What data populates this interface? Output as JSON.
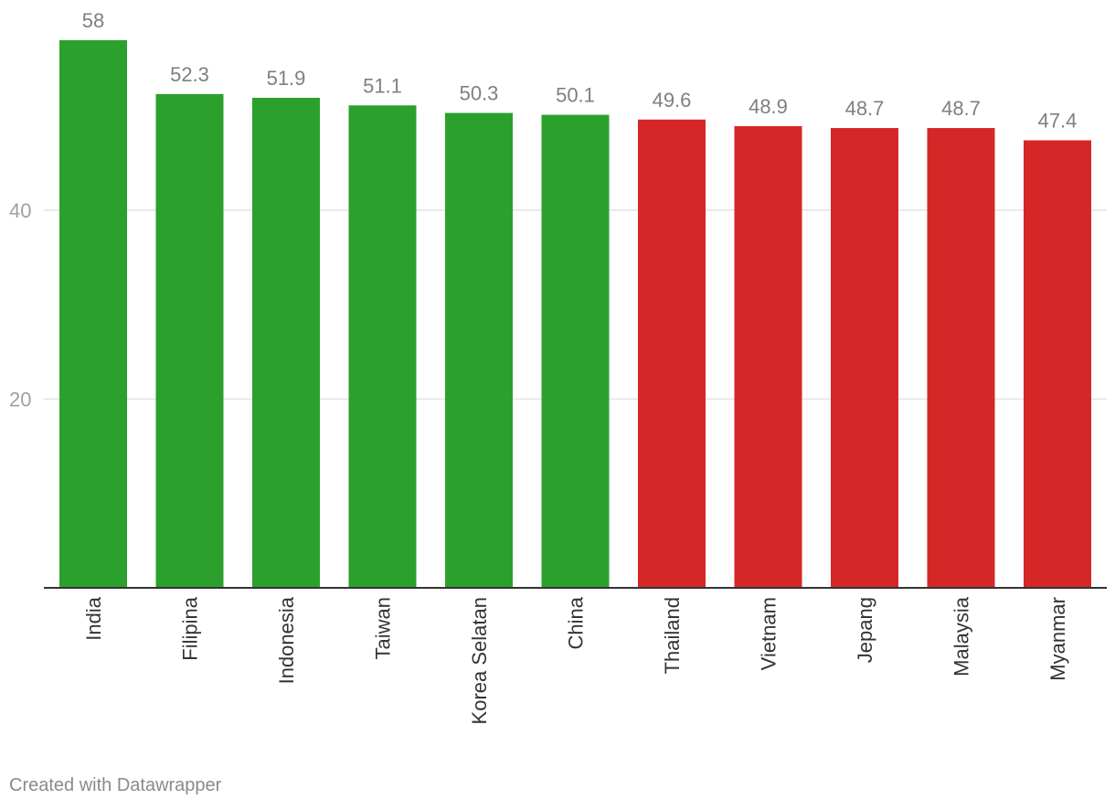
{
  "chart_data": {
    "type": "bar",
    "categories": [
      "India",
      "Filipina",
      "Indonesia",
      "Taiwan",
      "Korea Selatan",
      "China",
      "Thailand",
      "Vietnam",
      "Jepang",
      "Malaysia",
      "Myanmar"
    ],
    "values": [
      58,
      52.3,
      51.9,
      51.1,
      50.3,
      50.1,
      49.6,
      48.9,
      48.7,
      48.7,
      47.4
    ],
    "value_labels": [
      "58",
      "52.3",
      "51.9",
      "51.1",
      "50.3",
      "50.1",
      "49.6",
      "48.9",
      "48.7",
      "48.7",
      "47.4"
    ],
    "bar_colors": [
      "#2ca02c",
      "#2ca02c",
      "#2ca02c",
      "#2ca02c",
      "#2ca02c",
      "#2ca02c",
      "#d62728",
      "#d62728",
      "#d62728",
      "#d62728",
      "#d62728"
    ],
    "yticks": [
      20,
      40
    ],
    "ylim": [
      0,
      58
    ],
    "grid": true,
    "title": "",
    "xlabel": "",
    "ylabel": ""
  },
  "colors": {
    "above": "#2ca02c",
    "below": "#d62728",
    "grid": "#e2e2e2",
    "axis": "#333333",
    "tick_text": "#a0a0a0",
    "value_text": "#7f7f7f",
    "category_text": "#333333"
  },
  "credit": "Created with Datawrapper"
}
